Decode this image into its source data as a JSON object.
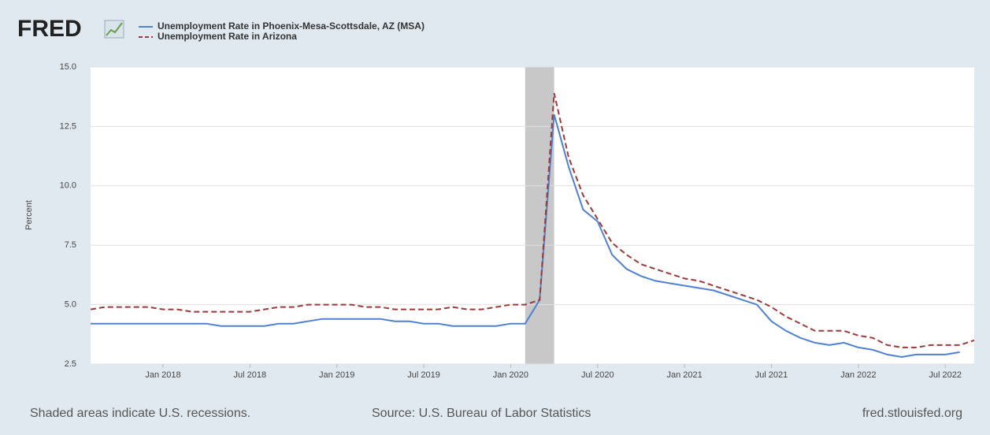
{
  "chart_data": {
    "type": "line",
    "logo": "FRED",
    "y_label": "Percent",
    "footer_left": "Shaded areas indicate U.S. recessions.",
    "footer_center": "Source: U.S. Bureau of Labor Statistics",
    "footer_right": "fred.stlouisfed.org",
    "x": [
      "2017-08",
      "2017-09",
      "2017-10",
      "2017-11",
      "2017-12",
      "2018-01",
      "2018-02",
      "2018-03",
      "2018-04",
      "2018-05",
      "2018-06",
      "2018-07",
      "2018-08",
      "2018-09",
      "2018-10",
      "2018-11",
      "2018-12",
      "2019-01",
      "2019-02",
      "2019-03",
      "2019-04",
      "2019-05",
      "2019-06",
      "2019-07",
      "2019-08",
      "2019-09",
      "2019-10",
      "2019-11",
      "2019-12",
      "2020-01",
      "2020-02",
      "2020-03",
      "2020-04",
      "2020-05",
      "2020-06",
      "2020-07",
      "2020-08",
      "2020-09",
      "2020-10",
      "2020-11",
      "2020-12",
      "2021-01",
      "2021-02",
      "2021-03",
      "2021-04",
      "2021-05",
      "2021-06",
      "2021-07",
      "2021-08",
      "2021-09",
      "2021-10",
      "2021-11",
      "2021-12",
      "2022-01",
      "2022-02",
      "2022-03",
      "2022-04",
      "2022-05",
      "2022-06",
      "2022-07",
      "2022-08",
      "2022-09"
    ],
    "series": [
      {
        "name": "Unemployment Rate in Phoenix-Mesa-Scottsdale, AZ (MSA)",
        "color": "#4f81d0",
        "dash": false,
        "values": [
          4.2,
          4.2,
          4.2,
          4.2,
          4.2,
          4.2,
          4.2,
          4.2,
          4.2,
          4.1,
          4.1,
          4.1,
          4.1,
          4.2,
          4.2,
          4.3,
          4.4,
          4.4,
          4.4,
          4.4,
          4.4,
          4.3,
          4.3,
          4.2,
          4.2,
          4.1,
          4.1,
          4.1,
          4.1,
          4.2,
          4.2,
          5.2,
          13.0,
          10.8,
          9.0,
          8.5,
          7.1,
          6.5,
          6.2,
          6.0,
          5.9,
          5.8,
          5.7,
          5.6,
          5.4,
          5.2,
          5.0,
          4.3,
          3.9,
          3.6,
          3.4,
          3.3,
          3.4,
          3.2,
          3.1,
          2.9,
          2.8,
          2.9,
          2.9,
          2.9,
          3.0,
          null
        ]
      },
      {
        "name": "Unemployment Rate in Arizona",
        "color": "#9b3a3a",
        "dash": true,
        "values": [
          4.8,
          4.9,
          4.9,
          4.9,
          4.9,
          4.8,
          4.8,
          4.7,
          4.7,
          4.7,
          4.7,
          4.7,
          4.8,
          4.9,
          4.9,
          5.0,
          5.0,
          5.0,
          5.0,
          4.9,
          4.9,
          4.8,
          4.8,
          4.8,
          4.8,
          4.9,
          4.8,
          4.8,
          4.9,
          5.0,
          5.0,
          5.2,
          13.9,
          11.2,
          9.6,
          8.6,
          7.6,
          7.1,
          6.7,
          6.5,
          6.3,
          6.1,
          6.0,
          5.8,
          5.6,
          5.4,
          5.2,
          4.9,
          4.5,
          4.2,
          3.9,
          3.9,
          3.9,
          3.7,
          3.6,
          3.3,
          3.2,
          3.2,
          3.3,
          3.3,
          3.3,
          3.5
        ]
      }
    ],
    "recessions": [
      {
        "start": "2020-02",
        "end": "2020-04"
      }
    ],
    "xlim": [
      "2017-08",
      "2022-09"
    ],
    "xticks": [
      {
        "value": "2018-01",
        "label": "Jan 2018"
      },
      {
        "value": "2018-07",
        "label": "Jul 2018"
      },
      {
        "value": "2019-01",
        "label": "Jan 2019"
      },
      {
        "value": "2019-07",
        "label": "Jul 2019"
      },
      {
        "value": "2020-01",
        "label": "Jan 2020"
      },
      {
        "value": "2020-07",
        "label": "Jul 2020"
      },
      {
        "value": "2021-01",
        "label": "Jan 2021"
      },
      {
        "value": "2021-07",
        "label": "Jul 2021"
      },
      {
        "value": "2022-01",
        "label": "Jan 2022"
      },
      {
        "value": "2022-07",
        "label": "Jul 2022"
      }
    ],
    "ylim": [
      2.5,
      15
    ],
    "yticks": [
      2.5,
      {
        "value": 5,
        "label": "5.0"
      },
      7.5,
      {
        "value": 10,
        "label": "10.0"
      },
      12.5,
      {
        "value": 15,
        "label": "15.0"
      }
    ],
    "grid": true
  }
}
